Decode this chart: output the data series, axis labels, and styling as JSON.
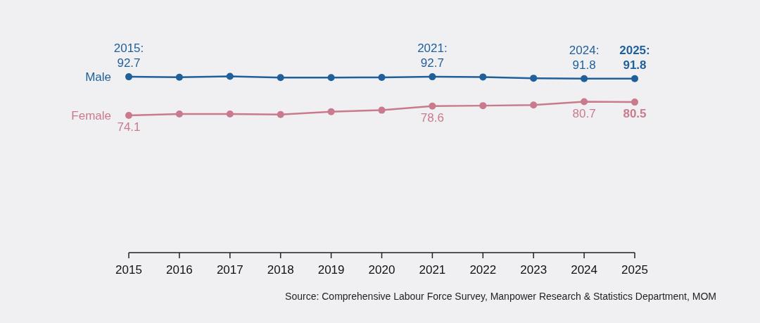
{
  "chart_data": {
    "type": "line",
    "x": [
      2015,
      2016,
      2017,
      2018,
      2019,
      2020,
      2021,
      2022,
      2023,
      2024,
      2025
    ],
    "xlim": [
      2015,
      2025
    ],
    "xticks": [
      2015,
      2016,
      2017,
      2018,
      2019,
      2020,
      2021,
      2022,
      2023,
      2024,
      2025
    ],
    "tick_labels": "x",
    "grid": false,
    "legend": false,
    "marker": "circle",
    "line_style": "solid",
    "series": [
      {
        "name": "Male",
        "color": "#1f5f9a",
        "values": [
          92.7,
          92.5,
          92.9,
          92.3,
          92.3,
          92.4,
          92.7,
          92.6,
          92.0,
          91.8,
          91.8
        ],
        "value_labels": [
          "2015:\n92.7",
          null,
          null,
          null,
          null,
          null,
          "2021:\n92.7",
          null,
          null,
          "2024:\n91.8",
          "2025:\n91.8"
        ]
      },
      {
        "name": "Female",
        "color": "#c97a8c",
        "values": [
          74.1,
          74.8,
          74.8,
          74.5,
          75.9,
          76.6,
          78.6,
          78.8,
          79.1,
          80.7,
          80.5
        ],
        "value_labels": [
          "74.1",
          null,
          null,
          null,
          null,
          null,
          "78.6",
          null,
          null,
          "80.7",
          "80.5"
        ]
      }
    ],
    "annotations": [
      "Source: Comprehensive Labour Force Survey, Manpower Research & Statistics Department, MOM"
    ]
  }
}
